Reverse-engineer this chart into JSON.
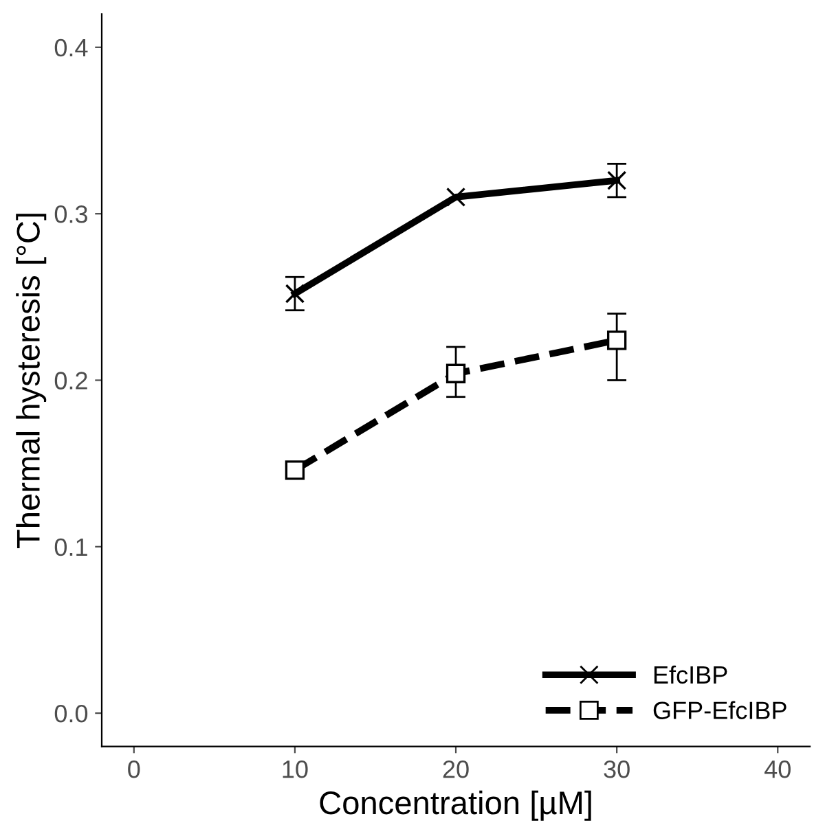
{
  "chart_data": {
    "type": "line",
    "xlabel": "Concentration [µM]",
    "ylabel": "Thermal hysteresis [°C]",
    "x": [
      10,
      20,
      30
    ],
    "series": [
      {
        "name": "EfcIBP",
        "color": "#000000",
        "values": [
          0.252,
          0.31,
          0.32
        ],
        "errors": [
          0.01,
          null,
          0.01
        ],
        "marker": "cross",
        "line_style": "solid"
      },
      {
        "name": "GFP-EfcIBP",
        "color": "#000000",
        "values": [
          0.146,
          0.204,
          0.224
        ],
        "errors": [
          0.003,
          [
            0.19,
            0.22
          ],
          [
            0.2,
            0.24
          ]
        ],
        "marker": "square",
        "line_style": "dashed"
      }
    ],
    "xlim": [
      -2,
      42
    ],
    "xticks": [
      0,
      10,
      20,
      30,
      40
    ],
    "ylim": [
      -0.02,
      0.42
    ],
    "yticks": [
      {
        "value": 0,
        "label": "0.0"
      },
      0.1,
      0.2,
      0.3,
      0.4
    ],
    "grid": false,
    "legend": "bottom right"
  }
}
